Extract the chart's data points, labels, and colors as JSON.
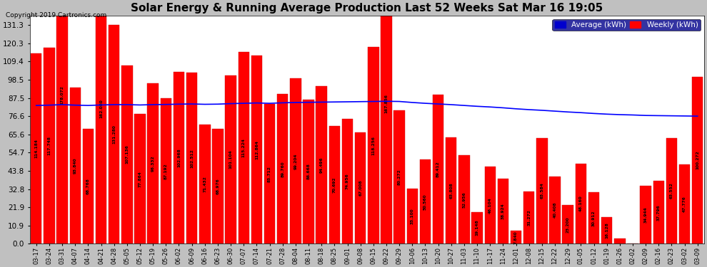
{
  "title": "Solar Energy & Running Average Production Last 52 Weeks Sat Mar 16 19:05",
  "copyright": "Copyright 2019 Cartronics.com",
  "bar_color": "#ff0000",
  "avg_line_color": "#0000ff",
  "background_color": "#c0c0c0",
  "plot_bg_color": "#ffffff",
  "grid_color": "#cccccc",
  "title_fontsize": 11,
  "yticks": [
    0.0,
    10.9,
    21.9,
    32.8,
    43.8,
    54.7,
    65.6,
    76.6,
    87.5,
    98.5,
    109.4,
    120.3,
    131.3
  ],
  "categories": [
    "03-17",
    "03-24",
    "03-31",
    "04-07",
    "04-14",
    "04-21",
    "04-28",
    "05-05",
    "05-12",
    "05-19",
    "05-26",
    "06-02",
    "06-09",
    "06-16",
    "06-23",
    "06-30",
    "07-07",
    "07-14",
    "07-21",
    "07-28",
    "08-04",
    "08-11",
    "08-18",
    "08-25",
    "09-01",
    "09-08",
    "09-15",
    "09-22",
    "09-29",
    "10-06",
    "10-13",
    "10-20",
    "10-27",
    "11-03",
    "11-10",
    "11-17",
    "11-24",
    "12-01",
    "12-08",
    "12-15",
    "12-22",
    "12-29",
    "01-05",
    "01-12",
    "01-19",
    "01-26",
    "02-02",
    "02-09",
    "02-16",
    "02-23",
    "03-02",
    "03-09"
  ],
  "weekly_values": [
    114.184,
    117.748,
    178.072,
    93.84,
    68.768,
    162.08,
    131.28,
    107.136,
    77.864,
    96.332,
    87.192,
    102.968,
    102.512,
    71.432,
    68.976,
    101.104,
    115.224,
    112.864,
    83.712,
    89.76,
    99.204,
    86.668,
    94.496,
    70.692,
    74.956,
    67.008,
    118.256,
    167.856,
    80.272,
    33.1,
    50.56,
    89.412,
    63.808,
    52.956,
    19.148,
    46.104,
    38.924,
    7.84,
    31.272,
    63.584,
    40.408,
    23.2,
    48.16,
    30.912,
    16.128,
    3.012,
    0.0,
    34.944,
    37.796,
    63.552,
    47.776,
    100.272
  ],
  "avg_values": [
    83.0,
    83.2,
    83.5,
    83.2,
    83.0,
    83.3,
    83.5,
    83.5,
    83.3,
    83.5,
    83.6,
    83.8,
    83.9,
    83.7,
    83.8,
    84.1,
    84.3,
    84.5,
    84.3,
    84.6,
    84.8,
    84.9,
    85.0,
    85.1,
    85.2,
    85.3,
    85.4,
    85.5,
    85.4,
    84.8,
    84.3,
    83.9,
    83.5,
    83.0,
    82.5,
    82.1,
    81.6,
    81.0,
    80.5,
    80.1,
    79.6,
    79.1,
    78.7,
    78.2,
    77.8,
    77.5,
    77.3,
    77.0,
    76.9,
    76.8,
    76.7,
    76.6
  ],
  "legend_avg_color": "#0000cd",
  "legend_weekly_color": "#ff0000",
  "legend_avg_label": "Average (kWh)",
  "legend_weekly_label": "Weekly (kWh)"
}
